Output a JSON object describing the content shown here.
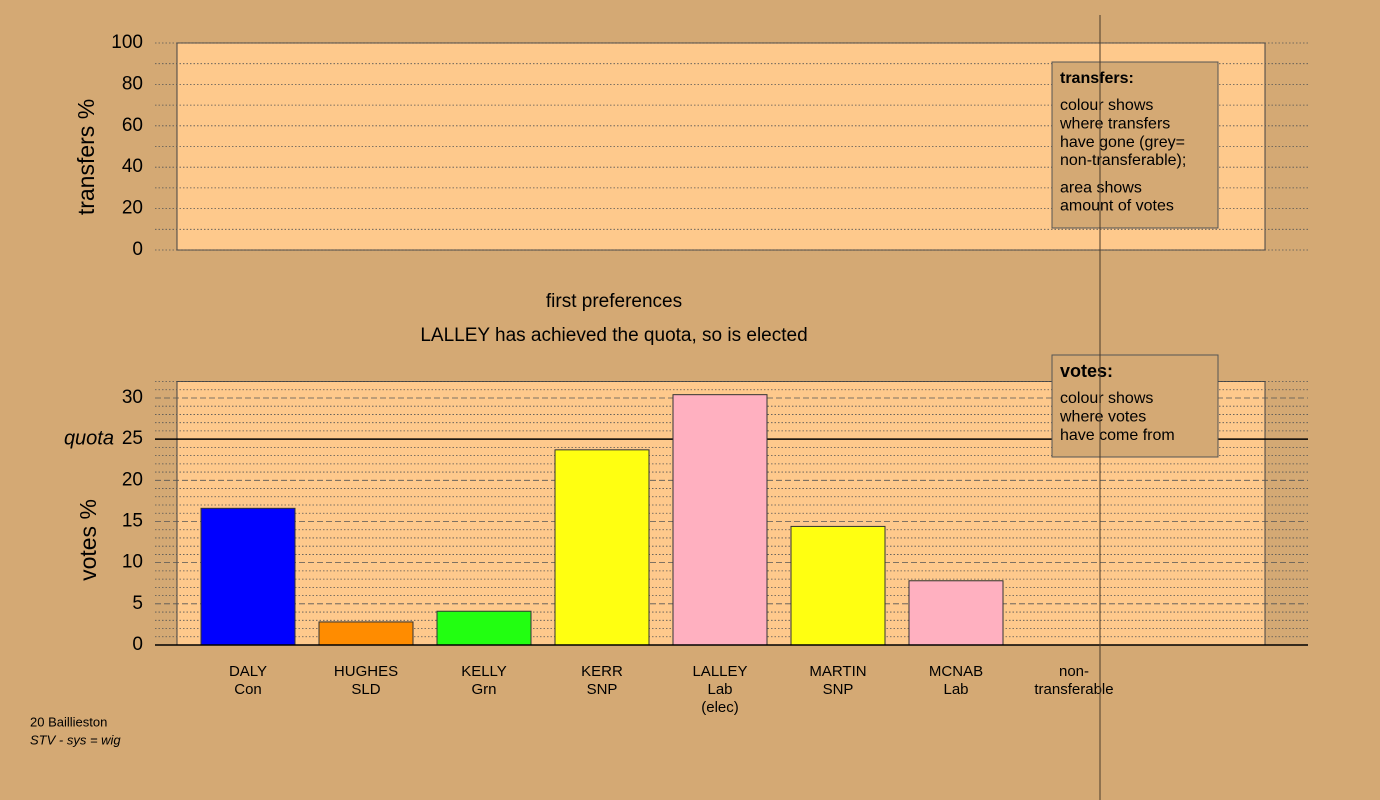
{
  "chart_data": [
    {
      "type": "bar",
      "ylabel": "transfers %",
      "ylim": [
        0,
        100
      ],
      "yticks": [
        0,
        20,
        40,
        60,
        80,
        100
      ],
      "minor_yticks": [
        10,
        30,
        50,
        70,
        90
      ],
      "note": {
        "title": "transfers:",
        "paragraphs": [
          [
            "colour shows",
            "where transfers",
            "have gone (grey=",
            "non-transferable);"
          ],
          [
            "area shows",
            "amount of votes"
          ]
        ]
      }
    },
    {
      "type": "bar",
      "title": "first preferences",
      "subtitle": "LALLEY has achieved the quota, so is elected",
      "ylabel": "votes %",
      "ylim": [
        0,
        32
      ],
      "yticks": [
        0,
        5,
        10,
        15,
        20,
        25,
        30
      ],
      "minor_yticks": [
        1,
        2,
        3,
        4,
        6,
        7,
        8,
        9,
        11,
        12,
        13,
        14,
        16,
        17,
        18,
        19,
        21,
        22,
        23,
        24,
        26,
        27,
        28,
        29,
        31,
        32
      ],
      "reference_line": {
        "label": "quota",
        "value": 25
      },
      "categories": [
        [
          "DALY",
          "Con"
        ],
        [
          "HUGHES",
          "SLD"
        ],
        [
          "KELLY",
          "Grn"
        ],
        [
          "KERR",
          "SNP"
        ],
        [
          "LALLEY",
          "Lab",
          "(elec)"
        ],
        [
          "MARTIN",
          "SNP"
        ],
        [
          "MCNAB",
          "Lab"
        ],
        [
          "non-",
          "transferable"
        ]
      ],
      "values": [
        16.6,
        2.8,
        4.1,
        23.7,
        30.4,
        14.4,
        7.8,
        null
      ],
      "colors": [
        "#0000ff",
        "#ff8c00",
        "#22ff11",
        "#ffff11",
        "#ffb0c0",
        "#ffff11",
        "#ffb0c0",
        null
      ],
      "note": {
        "title": "votes:",
        "paragraphs": [
          [
            "colour shows",
            "where votes",
            "have come from"
          ]
        ]
      }
    }
  ],
  "footer": {
    "place": "20 Baillieston",
    "system": "STV - sys = wig"
  }
}
